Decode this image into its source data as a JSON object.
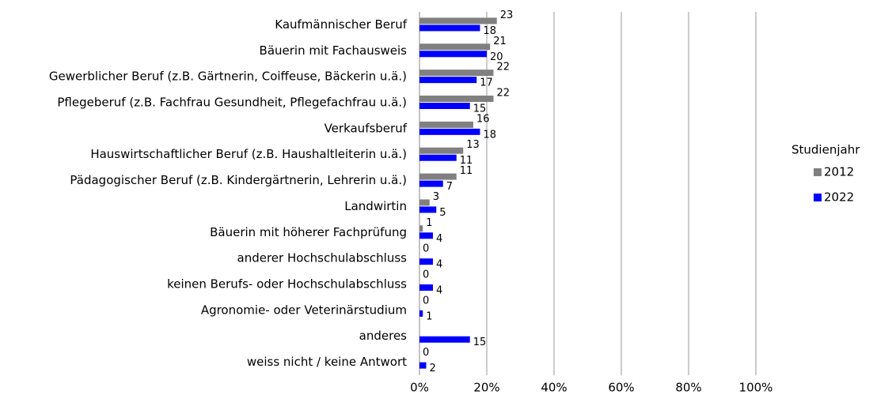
{
  "chart_data": {
    "type": "bar",
    "orientation": "horizontal",
    "categories": [
      "Kaufmännischer Beruf",
      "Bäuerin mit Fachausweis",
      "Gewerblicher Beruf (z.B. Gärtnerin, Coiffeuse, Bäckerin u.ä.)",
      "Pflegeberuf (z.B. Fachfrau Gesundheit, Pflegefachfrau u.ä.)",
      "Verkaufsberuf",
      "Hauswirtschaftlicher Beruf (z.B. Haushaltleiterin u.ä.)",
      "Pädagogischer Beruf (z.B. Kindergärtnerin, Lehrerin u.ä.)",
      "Landwirtin",
      "Bäuerin mit höherer Fachprüfung",
      "anderer Hochschulabschluss",
      "keinen Berufs- oder Hochschulabschluss",
      "Agronomie- oder Veterinärstudium",
      "anderes",
      "weiss nicht / keine Antwort"
    ],
    "series": [
      {
        "name": "2012",
        "color": "#808080",
        "values": [
          23,
          21,
          22,
          22,
          16,
          13,
          11,
          3,
          1,
          0,
          0,
          0,
          null,
          0
        ]
      },
      {
        "name": "2022",
        "color": "#0000ff",
        "values": [
          18,
          20,
          17,
          15,
          18,
          11,
          7,
          5,
          4,
          4,
          4,
          1,
          15,
          2
        ]
      }
    ],
    "xlim": [
      0,
      100
    ],
    "xticks": [
      {
        "value": 0,
        "label": "0%"
      },
      {
        "value": 20,
        "label": "20%"
      },
      {
        "value": 40,
        "label": "40%"
      },
      {
        "value": 60,
        "label": "60%"
      },
      {
        "value": 80,
        "label": "80%"
      },
      {
        "value": 100,
        "label": "100%"
      }
    ],
    "grid": true,
    "legend": {
      "title": "Studienjahr",
      "position": "right"
    }
  }
}
